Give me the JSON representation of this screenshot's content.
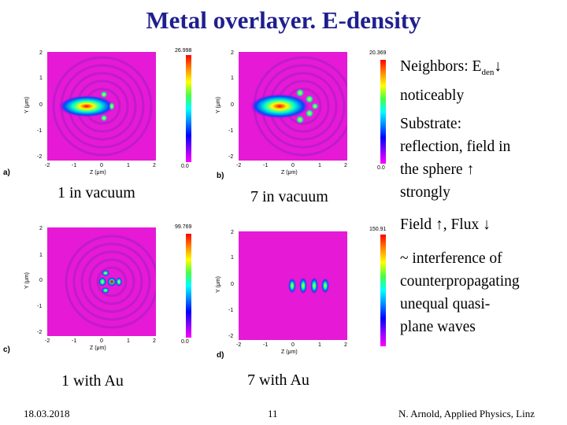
{
  "title": "Metal overlayer. E-density",
  "panels": [
    {
      "label": "a)",
      "caption": "1 in vacuum",
      "cbar_max": "26.998",
      "cbar_min": "0.0"
    },
    {
      "label": "b)",
      "caption": "7 in vacuum",
      "cbar_max": "20.369",
      "cbar_min": "0.0"
    },
    {
      "label": "c)",
      "caption": "1 with Au",
      "cbar_max": "99.769",
      "cbar_min": "0.0"
    },
    {
      "label": "d)",
      "caption": "7 with Au",
      "cbar_max": "150.91",
      "cbar_min": "0.0"
    }
  ],
  "axes": {
    "x_label": "Z (μm)",
    "y_label": "Y (μm)",
    "x_ticks": [
      "-2",
      "-1",
      "0",
      "1",
      "2"
    ],
    "y_ticks": [
      "2",
      "1",
      "0",
      "-1",
      "-2"
    ]
  },
  "notes": {
    "neighbors_a": "Neighbors: E",
    "neighbors_sub": "den",
    "neighbors_arrow": "↓",
    "neighbors_b": "noticeably",
    "substrate_1": "Substrate:",
    "substrate_2": "reflection, field in",
    "substrate_3": "the sphere ↑",
    "substrate_4": "strongly",
    "field": "Field  ↑, Flux  ↓",
    "interference_1": "~ interference of",
    "interference_2": "counterpropagating",
    "interference_3": "unequal quasi-",
    "interference_4": "plane waves"
  },
  "footer": {
    "date": "18.03.2018",
    "page": "11",
    "author": "N. Arnold, Applied Physics, Linz"
  }
}
